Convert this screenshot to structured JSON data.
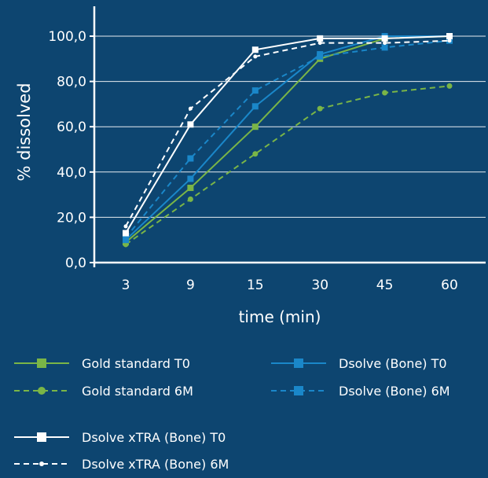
{
  "chart_data": {
    "type": "line",
    "xlabel": "time (min)",
    "ylabel": "% dissolved",
    "categories": [
      "3",
      "9",
      "15",
      "30",
      "45",
      "60"
    ],
    "yticks": [
      "0,0",
      "20,0",
      "40,0",
      "60,0",
      "80,0",
      "100,0"
    ],
    "ylim": [
      0,
      100
    ],
    "grid": true,
    "legend_position": "bottom",
    "series": [
      {
        "name": "Gold standard T0",
        "values": [
          9,
          33,
          60,
          90,
          99,
          100
        ],
        "color": "#7ab547",
        "dash": "solid",
        "marker": "square"
      },
      {
        "name": "Gold standard 6M",
        "values": [
          8,
          28,
          48,
          68,
          75,
          78
        ],
        "color": "#7ab547",
        "dash": "dashed",
        "marker": "circle"
      },
      {
        "name": "Dsolve (Bone) T0",
        "values": [
          10,
          37,
          69,
          92,
          100,
          100
        ],
        "color": "#1a87c9",
        "dash": "solid",
        "marker": "square"
      },
      {
        "name": "Dsolve (Bone) 6M",
        "values": [
          11,
          46,
          76,
          91,
          95,
          98
        ],
        "color": "#1a87c9",
        "dash": "dashed",
        "marker": "square"
      },
      {
        "name": "Dsolve xTRA (Bone) T0",
        "values": [
          13,
          61,
          94,
          99,
          99,
          100
        ],
        "color": "#ffffff",
        "dash": "solid",
        "marker": "square"
      },
      {
        "name": "Dsolve xTRA (Bone) 6M",
        "values": [
          16,
          68,
          91,
          97,
          97,
          98
        ],
        "color": "#ffffff",
        "dash": "dashed",
        "marker": "circle-small"
      }
    ]
  }
}
